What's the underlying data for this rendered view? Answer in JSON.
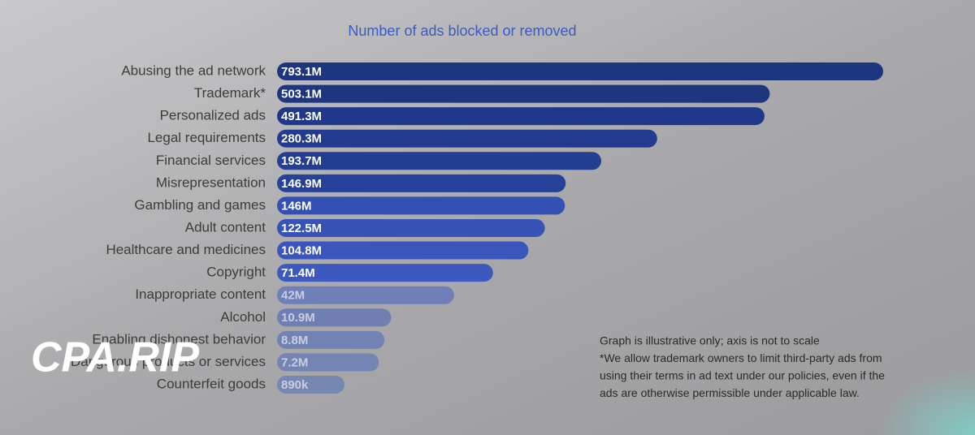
{
  "chart_data": {
    "type": "bar",
    "orientation": "horizontal",
    "title": "Number of ads blocked or removed",
    "categories": [
      "Abusing the ad network",
      "Trademark*",
      "Personalized ads",
      "Legal requirements",
      "Financial services",
      "Misrepresentation",
      "Gambling and games",
      "Adult content",
      "Healthcare and medicines",
      "Copyright",
      "Inappropriate content",
      "Alcohol",
      "Enabling dishonest behavior",
      "Dangerous products or services",
      "Counterfeit goods"
    ],
    "values": [
      793.1,
      503.1,
      491.3,
      280.3,
      193.7,
      146.9,
      146,
      122.5,
      104.8,
      71.4,
      42,
      10.9,
      8.8,
      7.2,
      0.89
    ],
    "value_labels": [
      "793.1M",
      "503.1M",
      "491.3M",
      "280.3M",
      "193.7M",
      "146.9M",
      "146M",
      "122.5M",
      "104.8M",
      "71.4M",
      "42M",
      "10.9M",
      "8.8M",
      "7.2M",
      "890k"
    ],
    "colors": [
      "#1e3580",
      "#1e3580",
      "#20388a",
      "#223b8e",
      "#243e94",
      "#26419a",
      "#3550b5",
      "#3853b8",
      "#3a56bc",
      "#3d59c0",
      "#6f7fb8",
      "#6f7fb3",
      "#7282b3",
      "#7484b3",
      "#7787b3"
    ],
    "notes": [
      "Graph is illustrative only; axis is not to scale",
      "*We allow trademark owners to limit third-party ads from",
      "using their terms in ad text under our policies, even if the",
      "ads are otherwise permissible under applicable law."
    ],
    "watermark": "CPA.RIP"
  }
}
